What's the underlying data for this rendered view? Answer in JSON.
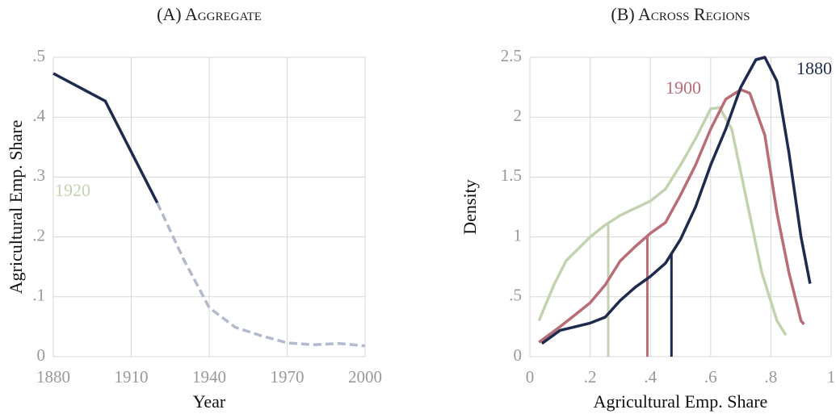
{
  "chart_data": [
    {
      "type": "line",
      "title": "(A) Aggregate",
      "x_label": "Year",
      "y_label": "Agricultural Emp. Share",
      "x": [
        1880,
        1900,
        1920,
        1930,
        1940,
        1950,
        1960,
        1970,
        1980,
        1990,
        2000
      ],
      "series": [
        {
          "color": "#1f2a4f",
          "dash": false,
          "values": [
            0.473,
            0.427,
            0.257,
            null,
            null,
            null,
            null,
            null,
            null,
            null,
            null
          ]
        },
        {
          "color": "#b4bace",
          "dash": true,
          "values": [
            null,
            null,
            0.257,
            0.164,
            0.082,
            0.049,
            0.035,
            0.023,
            0.02,
            0.022,
            0.018
          ]
        }
      ],
      "xlim": [
        1880,
        2000
      ],
      "xticks": [
        1880,
        1910,
        1940,
        1970,
        2000
      ],
      "ylim": [
        0,
        0.5
      ],
      "yticks": [
        0,
        {
          "value": 0.1,
          "label": ".1"
        },
        {
          "value": 0.2,
          "label": ".2"
        },
        {
          "value": 0.3,
          "label": ".3"
        },
        {
          "value": 0.4,
          "label": ".4"
        },
        {
          "value": 0.5,
          "label": ".5"
        }
      ],
      "grid": true
    },
    {
      "type": "density",
      "title": "(B) Across Regions",
      "x_label": "Agricultural  Emp. Share",
      "y_label": "Density",
      "series": [
        {
          "name": "1920",
          "color": "#c3d3b0",
          "mean": 0.26,
          "x": [
            0.03,
            0.08,
            0.12,
            0.2,
            0.25,
            0.3,
            0.35,
            0.4,
            0.45,
            0.5,
            0.55,
            0.6,
            0.63,
            0.67,
            0.72,
            0.77,
            0.82,
            0.85
          ],
          "values": [
            0.3,
            0.6,
            0.8,
            1.0,
            1.1,
            1.18,
            1.24,
            1.3,
            1.4,
            1.6,
            1.82,
            2.07,
            2.08,
            1.9,
            1.3,
            0.7,
            0.3,
            0.18
          ]
        },
        {
          "name": "1900",
          "color": "#b96d77",
          "mean": 0.39,
          "x": [
            0.03,
            0.1,
            0.15,
            0.2,
            0.25,
            0.3,
            0.35,
            0.4,
            0.45,
            0.5,
            0.55,
            0.6,
            0.65,
            0.7,
            0.73,
            0.78,
            0.82,
            0.86,
            0.9,
            0.91
          ],
          "values": [
            0.12,
            0.25,
            0.35,
            0.45,
            0.6,
            0.8,
            0.92,
            1.03,
            1.12,
            1.35,
            1.6,
            1.9,
            2.15,
            2.23,
            2.2,
            1.85,
            1.2,
            0.7,
            0.3,
            0.27
          ]
        },
        {
          "name": "1880",
          "color": "#1f2a4f",
          "mean": 0.47,
          "x": [
            0.04,
            0.1,
            0.15,
            0.2,
            0.25,
            0.3,
            0.35,
            0.4,
            0.45,
            0.5,
            0.55,
            0.6,
            0.65,
            0.7,
            0.75,
            0.78,
            0.82,
            0.86,
            0.9,
            0.93
          ],
          "values": [
            0.11,
            0.22,
            0.25,
            0.28,
            0.33,
            0.47,
            0.58,
            0.67,
            0.78,
            0.98,
            1.25,
            1.6,
            1.9,
            2.25,
            2.48,
            2.5,
            2.3,
            1.7,
            1.0,
            0.61
          ]
        }
      ],
      "xlim": [
        0,
        1
      ],
      "xticks": [
        0,
        {
          "value": 0.2,
          "label": ".2"
        },
        {
          "value": 0.4,
          "label": ".4"
        },
        {
          "value": 0.6,
          "label": ".6"
        },
        {
          "value": 0.8,
          "label": ".8"
        },
        1
      ],
      "ylim": [
        0,
        2.5
      ],
      "yticks": [
        0,
        {
          "value": 0.5,
          "label": ".5"
        },
        1,
        1.5,
        2,
        2.5
      ],
      "grid": true
    }
  ]
}
